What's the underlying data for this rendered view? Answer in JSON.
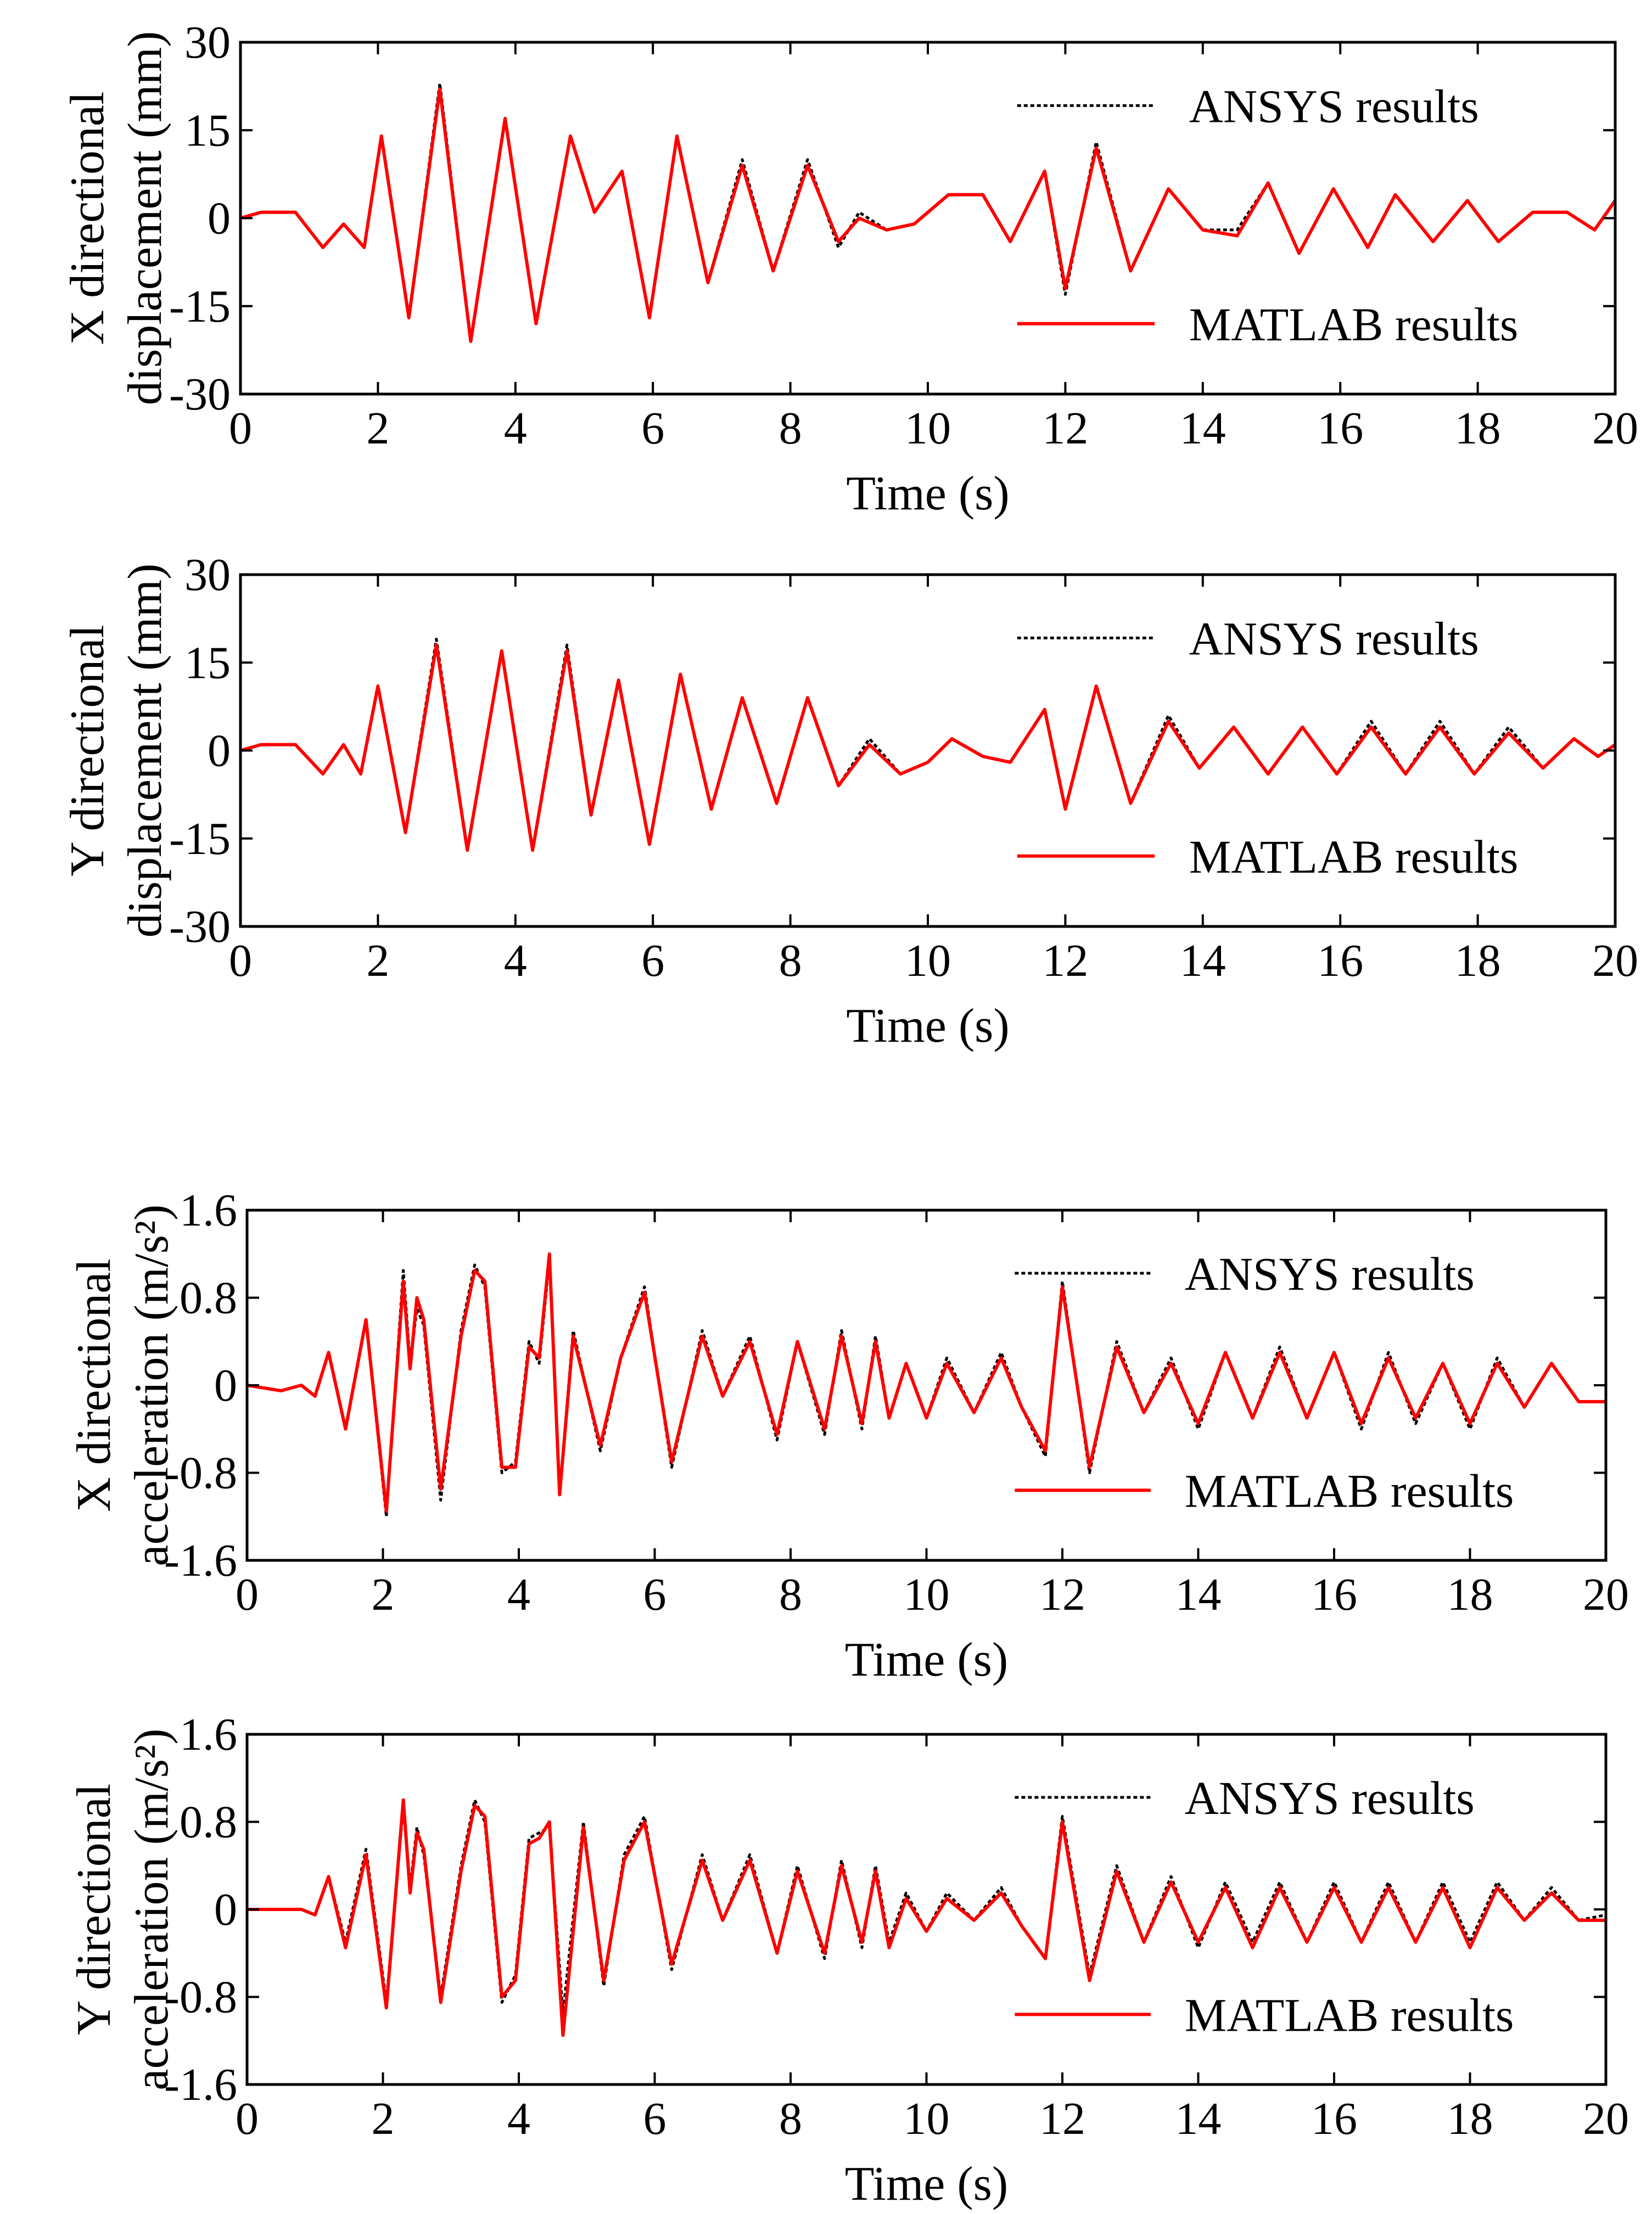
{
  "legend": {
    "ansys": "ANSYS results",
    "matlab": "MATLAB results"
  },
  "colors": {
    "ansys": "#000000",
    "matlab": "#ff0000"
  },
  "chart_data": [
    {
      "type": "line",
      "xlabel": "Time (s)",
      "ylabel_lines": [
        "X directional",
        "displacement (mm)"
      ],
      "xlim": [
        0,
        20
      ],
      "ylim": [
        -30,
        30
      ],
      "xticks": [
        0,
        2,
        4,
        6,
        8,
        10,
        12,
        14,
        16,
        18,
        20
      ],
      "yticks": [
        -30,
        -15,
        0,
        15,
        30
      ],
      "ytick_labels": [
        "-30",
        "-15",
        "0",
        "15",
        "30"
      ],
      "series": [
        {
          "name": "ANSYS results",
          "style": "dotted",
          "x": [
            0,
            0.3,
            0.8,
            1.2,
            1.5,
            1.8,
            2.05,
            2.45,
            2.9,
            3.35,
            3.85,
            4.3,
            4.8,
            5.15,
            5.55,
            5.95,
            6.35,
            6.8,
            7.3,
            7.75,
            8.25,
            8.7,
            9.0,
            9.4,
            9.8,
            10.3,
            10.8,
            11.2,
            11.7,
            12.0,
            12.45,
            12.95,
            13.5,
            14.0,
            14.5,
            14.95,
            15.4,
            15.9,
            16.4,
            16.8,
            17.35,
            17.85,
            18.3,
            18.8,
            19.3,
            19.7,
            20
          ],
          "y": [
            0,
            1,
            1,
            -5,
            -1,
            -5,
            14,
            -17,
            23,
            -21,
            17,
            -18,
            14,
            1,
            8,
            -17,
            14,
            -11,
            10,
            -9,
            10,
            -5,
            1,
            -2,
            -1,
            4,
            4,
            -4,
            8,
            -13,
            13,
            -9,
            5,
            -2,
            -2,
            6,
            -6,
            5,
            -5,
            4,
            -4,
            3,
            -4,
            1,
            1,
            -2,
            3
          ]
        },
        {
          "name": "MATLAB results",
          "style": "solid",
          "x": [
            0,
            0.3,
            0.8,
            1.2,
            1.5,
            1.8,
            2.05,
            2.45,
            2.9,
            3.35,
            3.85,
            4.3,
            4.8,
            5.15,
            5.55,
            5.95,
            6.35,
            6.8,
            7.3,
            7.75,
            8.25,
            8.7,
            9.0,
            9.4,
            9.8,
            10.3,
            10.8,
            11.2,
            11.7,
            12.0,
            12.45,
            12.95,
            13.5,
            14.0,
            14.5,
            14.95,
            15.4,
            15.9,
            16.4,
            16.8,
            17.35,
            17.85,
            18.3,
            18.8,
            19.3,
            19.7,
            20
          ],
          "y": [
            0,
            1,
            1,
            -5,
            -1,
            -5,
            14,
            -17,
            22,
            -21,
            17,
            -18,
            14,
            1,
            8,
            -17,
            14,
            -11,
            9,
            -9,
            9,
            -4,
            0,
            -2,
            -1,
            4,
            4,
            -4,
            8,
            -12,
            12,
            -9,
            5,
            -2,
            -3,
            6,
            -6,
            5,
            -5,
            4,
            -4,
            3,
            -4,
            1,
            1,
            -2,
            3
          ]
        }
      ]
    },
    {
      "type": "line",
      "xlabel": "Time (s)",
      "ylabel_lines": [
        "Y directional",
        "displacement (mm)"
      ],
      "xlim": [
        0,
        20
      ],
      "ylim": [
        -30,
        30
      ],
      "xticks": [
        0,
        2,
        4,
        6,
        8,
        10,
        12,
        14,
        16,
        18,
        20
      ],
      "yticks": [
        -30,
        -15,
        0,
        15,
        30
      ],
      "ytick_labels": [
        "-30",
        "-15",
        "0",
        "15",
        "30"
      ],
      "series": [
        {
          "name": "ANSYS results",
          "style": "dotted",
          "x": [
            0,
            0.3,
            0.8,
            1.2,
            1.5,
            1.75,
            2.0,
            2.4,
            2.85,
            3.3,
            3.8,
            4.25,
            4.75,
            5.1,
            5.5,
            5.95,
            6.4,
            6.85,
            7.3,
            7.8,
            8.25,
            8.7,
            9.15,
            9.6,
            10.0,
            10.35,
            10.8,
            11.2,
            11.7,
            12.0,
            12.45,
            12.95,
            13.5,
            13.95,
            14.45,
            14.95,
            15.45,
            15.95,
            16.45,
            16.95,
            17.45,
            17.95,
            18.45,
            18.95,
            19.4,
            19.75,
            20
          ],
          "y": [
            0,
            1,
            1,
            -4,
            1,
            -4,
            11,
            -14,
            19,
            -17,
            17,
            -17,
            18,
            -11,
            12,
            -16,
            13,
            -10,
            9,
            -9,
            9,
            -6,
            2,
            -4,
            -2,
            2,
            -1,
            -2,
            7,
            -10,
            11,
            -9,
            6,
            -3,
            4,
            -4,
            4,
            -4,
            5,
            -4,
            5,
            -4,
            4,
            -3,
            2,
            -1,
            1
          ]
        },
        {
          "name": "MATLAB results",
          "style": "solid",
          "x": [
            0,
            0.3,
            0.8,
            1.2,
            1.5,
            1.75,
            2.0,
            2.4,
            2.85,
            3.3,
            3.8,
            4.25,
            4.75,
            5.1,
            5.5,
            5.95,
            6.4,
            6.85,
            7.3,
            7.8,
            8.25,
            8.7,
            9.15,
            9.6,
            10.0,
            10.35,
            10.8,
            11.2,
            11.7,
            12.0,
            12.45,
            12.95,
            13.5,
            13.95,
            14.45,
            14.95,
            15.45,
            15.95,
            16.45,
            16.95,
            17.45,
            17.95,
            18.45,
            18.95,
            19.4,
            19.75,
            20
          ],
          "y": [
            0,
            1,
            1,
            -4,
            1,
            -4,
            11,
            -14,
            18,
            -17,
            17,
            -17,
            17,
            -11,
            12,
            -16,
            13,
            -10,
            9,
            -9,
            9,
            -6,
            1,
            -4,
            -2,
            2,
            -1,
            -2,
            7,
            -10,
            11,
            -9,
            5,
            -3,
            4,
            -4,
            4,
            -4,
            4,
            -4,
            4,
            -4,
            3,
            -3,
            2,
            -1,
            1
          ]
        }
      ]
    },
    {
      "type": "line",
      "xlabel": "Time (s)",
      "ylabel_lines": [
        "X directional",
        "acceleration (m/s²)"
      ],
      "xlim": [
        0,
        20
      ],
      "ylim": [
        -1.6,
        1.6
      ],
      "xticks": [
        0,
        2,
        4,
        6,
        8,
        10,
        12,
        14,
        16,
        18,
        20
      ],
      "yticks": [
        -1.6,
        -0.8,
        0,
        0.8,
        1.6
      ],
      "ytick_labels": [
        "-1.6",
        "-0.8",
        "0",
        "0.8",
        "1.6"
      ],
      "series": [
        {
          "name": "ANSYS results",
          "style": "dotted",
          "x": [
            0,
            0.5,
            0.8,
            1.0,
            1.2,
            1.45,
            1.75,
            2.05,
            2.3,
            2.4,
            2.5,
            2.6,
            2.85,
            3.15,
            3.35,
            3.5,
            3.75,
            3.95,
            4.15,
            4.3,
            4.45,
            4.6,
            4.8,
            5.2,
            5.5,
            5.85,
            6.25,
            6.7,
            7.0,
            7.4,
            7.8,
            8.1,
            8.5,
            8.75,
            9.05,
            9.25,
            9.45,
            9.7,
            10.0,
            10.3,
            10.7,
            11.1,
            11.4,
            11.75,
            12.0,
            12.4,
            12.8,
            13.2,
            13.6,
            14.0,
            14.4,
            14.8,
            15.2,
            15.6,
            16.0,
            16.4,
            16.8,
            17.2,
            17.6,
            18.0,
            18.4,
            18.8,
            19.2,
            19.6,
            20
          ],
          "y": [
            0,
            -0.05,
            0,
            -0.1,
            0.3,
            -0.4,
            0.6,
            -1.2,
            1.05,
            0.2,
            0.7,
            0.55,
            -1.05,
            0.5,
            1.1,
            0.9,
            -0.8,
            -0.7,
            0.4,
            0.2,
            1.15,
            -1.0,
            0.5,
            -0.6,
            0.25,
            0.9,
            -0.75,
            0.5,
            -0.1,
            0.45,
            -0.5,
            0.4,
            -0.45,
            0.5,
            -0.4,
            0.45,
            -0.3,
            0.2,
            -0.3,
            0.25,
            -0.25,
            0.3,
            -0.2,
            -0.65,
            0.95,
            -0.8,
            0.4,
            -0.25,
            0.25,
            -0.4,
            0.3,
            -0.3,
            0.35,
            -0.3,
            0.3,
            -0.4,
            0.3,
            -0.35,
            0.2,
            -0.4,
            0.25,
            -0.2,
            0.2,
            -0.15,
            -0.15
          ]
        },
        {
          "name": "MATLAB results",
          "style": "solid",
          "x": [
            0,
            0.5,
            0.8,
            1.0,
            1.2,
            1.45,
            1.75,
            2.05,
            2.3,
            2.4,
            2.5,
            2.6,
            2.85,
            3.15,
            3.35,
            3.5,
            3.75,
            3.95,
            4.15,
            4.3,
            4.45,
            4.6,
            4.8,
            5.2,
            5.5,
            5.85,
            6.25,
            6.7,
            7.0,
            7.4,
            7.8,
            8.1,
            8.5,
            8.75,
            9.05,
            9.25,
            9.45,
            9.7,
            10.0,
            10.3,
            10.7,
            11.1,
            11.4,
            11.75,
            12.0,
            12.4,
            12.8,
            13.2,
            13.6,
            14.0,
            14.4,
            14.8,
            15.2,
            15.6,
            16.0,
            16.4,
            16.8,
            17.2,
            17.6,
            18.0,
            18.4,
            18.8,
            19.2,
            19.6,
            20
          ],
          "y": [
            0,
            -0.05,
            0,
            -0.1,
            0.3,
            -0.4,
            0.6,
            -1.15,
            0.95,
            0.15,
            0.8,
            0.6,
            -0.95,
            0.45,
            1.05,
            0.95,
            -0.75,
            -0.75,
            0.35,
            0.25,
            1.2,
            -1.0,
            0.45,
            -0.55,
            0.25,
            0.85,
            -0.7,
            0.45,
            -0.1,
            0.4,
            -0.45,
            0.4,
            -0.4,
            0.45,
            -0.35,
            0.4,
            -0.3,
            0.2,
            -0.3,
            0.2,
            -0.25,
            0.25,
            -0.2,
            -0.6,
            0.9,
            -0.75,
            0.35,
            -0.25,
            0.2,
            -0.35,
            0.3,
            -0.3,
            0.3,
            -0.3,
            0.3,
            -0.35,
            0.25,
            -0.3,
            0.2,
            -0.35,
            0.2,
            -0.2,
            0.2,
            -0.15,
            -0.15
          ]
        }
      ]
    },
    {
      "type": "line",
      "xlabel": "Time (s)",
      "ylabel_lines": [
        "Y directional",
        "acceleration (m/s²)"
      ],
      "xlim": [
        0,
        20
      ],
      "ylim": [
        -1.6,
        1.6
      ],
      "xticks": [
        0,
        2,
        4,
        6,
        8,
        10,
        12,
        14,
        16,
        18,
        20
      ],
      "yticks": [
        -1.6,
        -0.8,
        0,
        0.8,
        1.6
      ],
      "ytick_labels": [
        "-1.6",
        "-0.8",
        "0",
        "0.8",
        "1.6"
      ],
      "series": [
        {
          "name": "ANSYS results",
          "style": "dotted",
          "x": [
            0,
            0.5,
            0.8,
            1.0,
            1.2,
            1.45,
            1.75,
            2.05,
            2.3,
            2.4,
            2.5,
            2.6,
            2.85,
            3.15,
            3.35,
            3.5,
            3.75,
            3.95,
            4.15,
            4.3,
            4.45,
            4.65,
            4.95,
            5.25,
            5.55,
            5.85,
            6.25,
            6.7,
            7.0,
            7.4,
            7.8,
            8.1,
            8.5,
            8.75,
            9.05,
            9.25,
            9.45,
            9.7,
            10.0,
            10.3,
            10.7,
            11.1,
            11.4,
            11.75,
            12.0,
            12.4,
            12.8,
            13.2,
            13.6,
            14.0,
            14.4,
            14.8,
            15.2,
            15.6,
            16.0,
            16.4,
            16.8,
            17.2,
            17.6,
            18.0,
            18.4,
            18.8,
            19.2,
            19.6,
            20
          ],
          "y": [
            0,
            0,
            0,
            -0.05,
            0.3,
            -0.3,
            0.55,
            -0.85,
            0.95,
            0.2,
            0.75,
            0.5,
            -0.8,
            0.4,
            1.0,
            0.8,
            -0.85,
            -0.6,
            0.65,
            0.7,
            0.75,
            -0.95,
            0.8,
            -0.7,
            0.5,
            0.85,
            -0.55,
            0.5,
            -0.1,
            0.5,
            -0.4,
            0.4,
            -0.45,
            0.45,
            -0.35,
            0.4,
            -0.3,
            0.15,
            -0.2,
            0.15,
            -0.1,
            0.2,
            -0.15,
            -0.45,
            0.85,
            -0.6,
            0.4,
            -0.3,
            0.3,
            -0.35,
            0.25,
            -0.3,
            0.25,
            -0.3,
            0.25,
            -0.3,
            0.25,
            -0.3,
            0.25,
            -0.3,
            0.25,
            -0.1,
            0.2,
            -0.1,
            -0.05
          ]
        },
        {
          "name": "MATLAB results",
          "style": "solid",
          "x": [
            0,
            0.5,
            0.8,
            1.0,
            1.2,
            1.45,
            1.75,
            2.05,
            2.3,
            2.4,
            2.5,
            2.6,
            2.85,
            3.15,
            3.35,
            3.5,
            3.75,
            3.95,
            4.15,
            4.3,
            4.45,
            4.65,
            4.95,
            5.25,
            5.55,
            5.85,
            6.25,
            6.7,
            7.0,
            7.4,
            7.8,
            8.1,
            8.5,
            8.75,
            9.05,
            9.25,
            9.45,
            9.7,
            10.0,
            10.3,
            10.7,
            11.1,
            11.4,
            11.75,
            12.0,
            12.4,
            12.8,
            13.2,
            13.6,
            14.0,
            14.4,
            14.8,
            15.2,
            15.6,
            16.0,
            16.4,
            16.8,
            17.2,
            17.6,
            18.0,
            18.4,
            18.8,
            19.2,
            19.6,
            20
          ],
          "y": [
            0,
            0,
            0,
            -0.05,
            0.3,
            -0.35,
            0.5,
            -0.9,
            1.0,
            0.15,
            0.7,
            0.55,
            -0.85,
            0.35,
            0.95,
            0.85,
            -0.8,
            -0.65,
            0.6,
            0.65,
            0.8,
            -1.15,
            0.75,
            -0.65,
            0.45,
            0.8,
            -0.5,
            0.45,
            -0.1,
            0.45,
            -0.4,
            0.35,
            -0.4,
            0.4,
            -0.3,
            0.35,
            -0.35,
            0.1,
            -0.2,
            0.1,
            -0.1,
            0.15,
            -0.15,
            -0.45,
            0.8,
            -0.65,
            0.35,
            -0.3,
            0.25,
            -0.3,
            0.2,
            -0.35,
            0.2,
            -0.3,
            0.2,
            -0.3,
            0.2,
            -0.3,
            0.2,
            -0.35,
            0.2,
            -0.1,
            0.15,
            -0.1,
            -0.1
          ]
        }
      ]
    }
  ]
}
